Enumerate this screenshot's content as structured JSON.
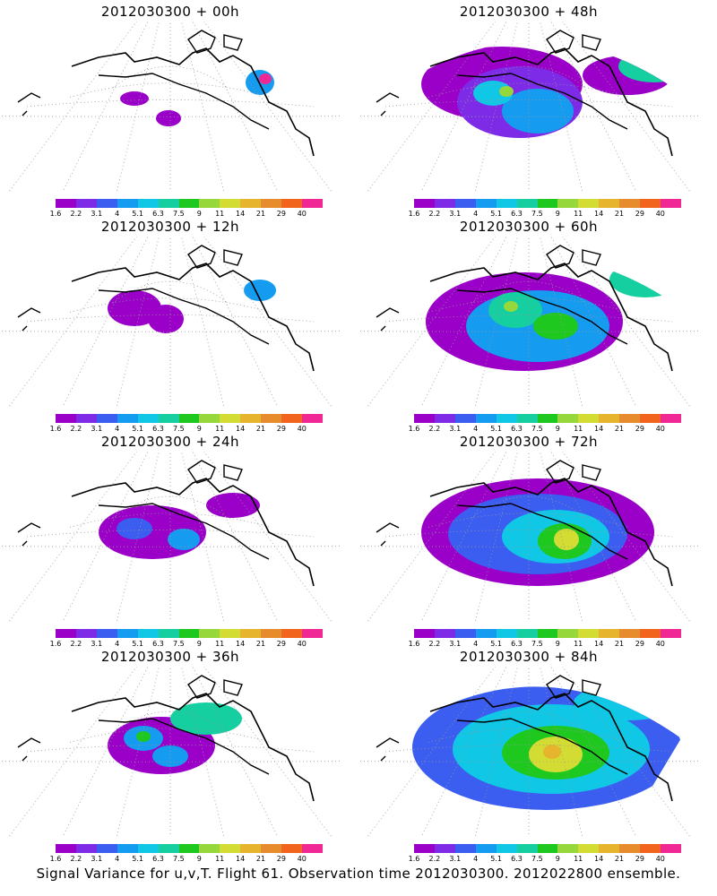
{
  "caption": "Signal Variance for u,v,T. Flight 61. Observation time 2012030300. 2012022800 ensemble.",
  "colorbar": {
    "colors": [
      "#9b00c8",
      "#7d2be6",
      "#3b5ef0",
      "#159cf0",
      "#10c8e6",
      "#15cfa0",
      "#1ec81e",
      "#96d73c",
      "#d2dc32",
      "#e6b42d",
      "#e68c2d",
      "#f0641e",
      "#f02896"
    ],
    "ticks": [
      "1.6",
      "2.2",
      "3.1",
      "4",
      "5.1",
      "6.3",
      "7.5",
      "9",
      "11",
      "14",
      "21",
      "29",
      "40"
    ]
  },
  "chart_data": [
    {
      "type": "heatmap",
      "title": "2012030300 + 00h",
      "forecast_hour": 0,
      "colorbar_levels": [
        1.6,
        2.2,
        3.1,
        4,
        5.1,
        6.3,
        7.5,
        9,
        11,
        14,
        21,
        29,
        40
      ],
      "max_level_band": "29-40"
    },
    {
      "type": "heatmap",
      "title": "2012030300 + 48h",
      "forecast_hour": 48,
      "colorbar_levels": [
        1.6,
        2.2,
        3.1,
        4,
        5.1,
        6.3,
        7.5,
        9,
        11,
        14,
        21,
        29,
        40
      ],
      "max_level_band": "7.5-9"
    },
    {
      "type": "heatmap",
      "title": "2012030300 + 12h",
      "forecast_hour": 12,
      "colorbar_levels": [
        1.6,
        2.2,
        3.1,
        4,
        5.1,
        6.3,
        7.5,
        9,
        11,
        14,
        21,
        29,
        40
      ],
      "max_level_band": "4-5.1"
    },
    {
      "type": "heatmap",
      "title": "2012030300 + 60h",
      "forecast_hour": 60,
      "colorbar_levels": [
        1.6,
        2.2,
        3.1,
        4,
        5.1,
        6.3,
        7.5,
        9,
        11,
        14,
        21,
        29,
        40
      ],
      "max_level_band": "9-11"
    },
    {
      "type": "heatmap",
      "title": "2012030300 + 24h",
      "forecast_hour": 24,
      "colorbar_levels": [
        1.6,
        2.2,
        3.1,
        4,
        5.1,
        6.3,
        7.5,
        9,
        11,
        14,
        21,
        29,
        40
      ],
      "max_level_band": "4-5.1"
    },
    {
      "type": "heatmap",
      "title": "2012030300 + 72h",
      "forecast_hour": 72,
      "colorbar_levels": [
        1.6,
        2.2,
        3.1,
        4,
        5.1,
        6.3,
        7.5,
        9,
        11,
        14,
        21,
        29,
        40
      ],
      "max_level_band": "9-11"
    },
    {
      "type": "heatmap",
      "title": "2012030300 + 36h",
      "forecast_hour": 36,
      "colorbar_levels": [
        1.6,
        2.2,
        3.1,
        4,
        5.1,
        6.3,
        7.5,
        9,
        11,
        14,
        21,
        29,
        40
      ],
      "max_level_band": "5.1-6.3"
    },
    {
      "type": "heatmap",
      "title": "2012030300 + 84h",
      "forecast_hour": 84,
      "colorbar_levels": [
        1.6,
        2.2,
        3.1,
        4,
        5.1,
        6.3,
        7.5,
        9,
        11,
        14,
        21,
        29,
        40
      ],
      "max_level_band": "11-14"
    }
  ]
}
